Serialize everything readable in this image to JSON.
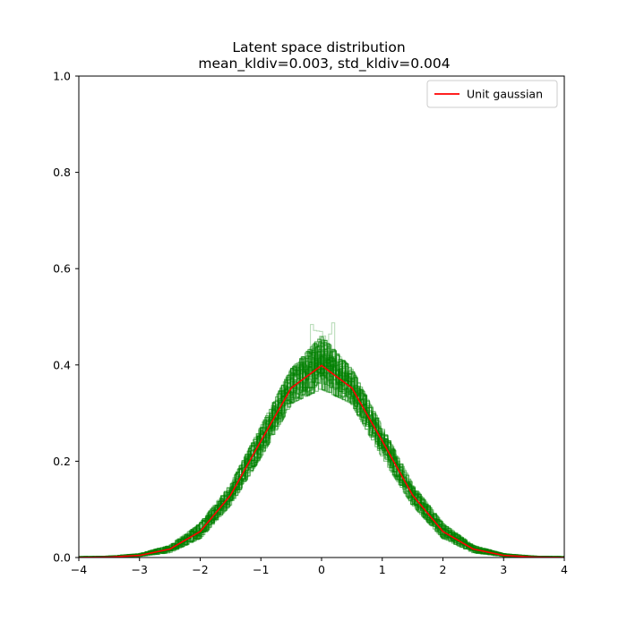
{
  "figure": {
    "title_line1": "Latent space distribution",
    "title_line2": "mean_kldiv=0.003, std_kldiv=0.004"
  },
  "chart_data": {
    "type": "line",
    "title": "Latent space distribution\nmean_kldiv=0.003, std_kldiv=0.004",
    "xlabel": "",
    "ylabel": "",
    "xlim": [
      -4,
      4
    ],
    "ylim": [
      0,
      1.0
    ],
    "x_ticks": [
      -4,
      -3,
      -2,
      -1,
      0,
      1,
      2,
      3,
      4
    ],
    "y_ticks": [
      0.0,
      0.2,
      0.4,
      0.6,
      0.8,
      1.0
    ],
    "x_tick_labels": [
      "−4",
      "−3",
      "−2",
      "−1",
      "0",
      "1",
      "2",
      "3",
      "4"
    ],
    "y_tick_labels": [
      "0.0",
      "0.2",
      "0.4",
      "0.6",
      "0.8",
      "1.0"
    ],
    "grid": false,
    "legend": {
      "placement": "top-right",
      "entries": [
        {
          "label": "Unit gaussian",
          "color": "#ff0000"
        }
      ]
    },
    "series": [
      {
        "name": "Unit gaussian",
        "color": "#ff0000",
        "style": "line",
        "x": [
          -4.0,
          -3.5,
          -3.0,
          -2.5,
          -2.0,
          -1.5,
          -1.0,
          -0.5,
          0.0,
          0.5,
          1.0,
          1.5,
          2.0,
          2.5,
          3.0,
          3.5,
          4.0
        ],
        "y": [
          0.0001,
          0.0009,
          0.0044,
          0.0175,
          0.054,
          0.1295,
          0.242,
          0.3521,
          0.3989,
          0.3521,
          0.242,
          0.1295,
          0.054,
          0.0175,
          0.0044,
          0.0009,
          0.0001
        ]
      },
      {
        "color": "#008000",
        "style": "step-histograms",
        "x": [
          -4.0,
          -3.5,
          -3.0,
          -2.5,
          -2.0,
          -1.5,
          -1.0,
          -0.5,
          0.0,
          0.5,
          1.0,
          1.5,
          2.0,
          2.5,
          3.0,
          3.5,
          4.0
        ],
        "y_low": [
          0.0,
          0.0,
          0.002,
          0.01,
          0.04,
          0.11,
          0.21,
          0.32,
          0.35,
          0.32,
          0.21,
          0.11,
          0.04,
          0.01,
          0.002,
          0.0,
          0.0
        ],
        "y_high": [
          0.002,
          0.003,
          0.008,
          0.025,
          0.07,
          0.15,
          0.27,
          0.39,
          0.46,
          0.39,
          0.27,
          0.15,
          0.07,
          0.025,
          0.008,
          0.003,
          0.002
        ],
        "y_max_outlier": 0.49
      }
    ]
  }
}
